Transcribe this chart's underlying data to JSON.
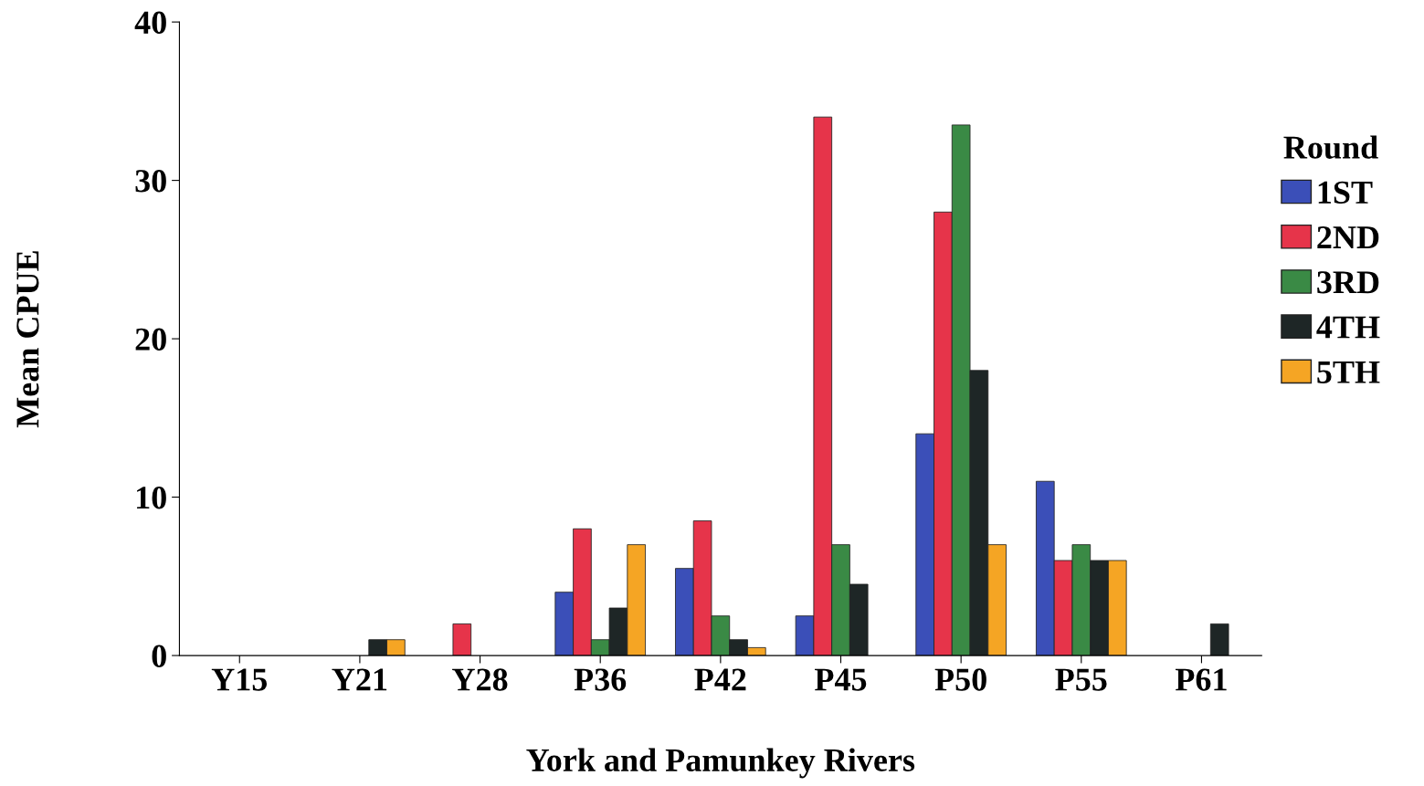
{
  "chart_data": {
    "type": "bar",
    "xlabel": "York and Pamunkey Rivers",
    "ylabel": "Mean CPUE",
    "legend_title": "Round",
    "categories": [
      "Y15",
      "Y21",
      "Y28",
      "P36",
      "P42",
      "P45",
      "P50",
      "P55",
      "P61"
    ],
    "series": [
      {
        "name": "1ST",
        "color": "#3b4fb8",
        "values": [
          null,
          null,
          null,
          4,
          5.5,
          2.5,
          14,
          11,
          null
        ]
      },
      {
        "name": "2ND",
        "color": "#e6344a",
        "values": [
          null,
          null,
          2,
          8,
          8.5,
          34,
          28,
          6,
          null
        ]
      },
      {
        "name": "3RD",
        "color": "#3a8a45",
        "values": [
          null,
          null,
          null,
          1,
          2.5,
          7,
          33.5,
          7,
          null
        ]
      },
      {
        "name": "4TH",
        "color": "#1e2626",
        "values": [
          null,
          1,
          null,
          3,
          1,
          4.5,
          18,
          6,
          2
        ]
      },
      {
        "name": "5TH",
        "color": "#f5a524",
        "values": [
          null,
          1,
          null,
          7,
          0.5,
          null,
          7,
          6,
          null
        ]
      }
    ],
    "ylim": [
      0,
      40
    ],
    "yticks": [
      0,
      10,
      20,
      30,
      40
    ],
    "grid": false,
    "legend": "right"
  }
}
